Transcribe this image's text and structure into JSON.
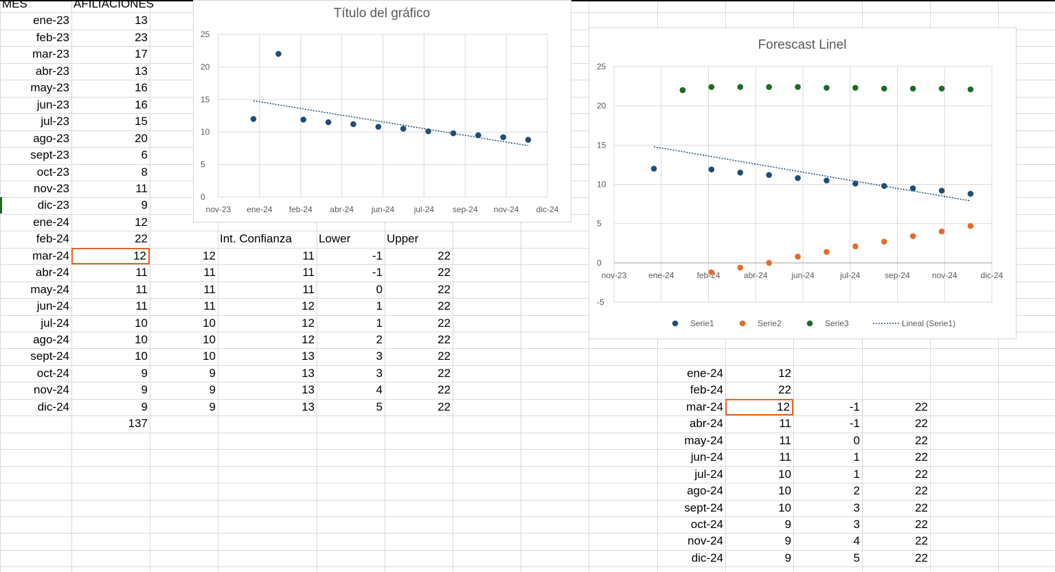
{
  "colors": {
    "grid": "#d9d9d9",
    "series1": "#1f4e79",
    "series2": "#e46c2c",
    "series3": "#1e6b24",
    "trend": "#1f4e79",
    "selection": "#e0651f"
  },
  "table_main": {
    "headers": [
      "MES",
      "AFILIACIONES"
    ],
    "rows": [
      [
        "ene-23",
        "13"
      ],
      [
        "feb-23",
        "23"
      ],
      [
        "mar-23",
        "17"
      ],
      [
        "abr-23",
        "13"
      ],
      [
        "may-23",
        "16"
      ],
      [
        "jun-23",
        "16"
      ],
      [
        "jul-23",
        "15"
      ],
      [
        "ago-23",
        "20"
      ],
      [
        "sept-23",
        "6"
      ],
      [
        "oct-23",
        "8"
      ],
      [
        "nov-23",
        "11"
      ],
      [
        "dic-23",
        "9"
      ],
      [
        "ene-24",
        "12"
      ],
      [
        "feb-24",
        "22"
      ],
      [
        "mar-24",
        "12"
      ],
      [
        "abr-24",
        "11"
      ],
      [
        "may-24",
        "11"
      ],
      [
        "jun-24",
        "11"
      ],
      [
        "jul-24",
        "10"
      ],
      [
        "ago-24",
        "10"
      ],
      [
        "sept-24",
        "10"
      ],
      [
        "oct-24",
        "9"
      ],
      [
        "nov-24",
        "9"
      ],
      [
        "dic-24",
        "9"
      ]
    ],
    "total": "137"
  },
  "table_forecast": {
    "headers": [
      "Int. Confianza",
      "Lower",
      "Upper"
    ],
    "rows": [
      [
        "12",
        "11",
        "-1",
        "22"
      ],
      [
        "11",
        "11",
        "-1",
        "22"
      ],
      [
        "11",
        "11",
        "0",
        "22"
      ],
      [
        "11",
        "12",
        "1",
        "22"
      ],
      [
        "10",
        "12",
        "1",
        "22"
      ],
      [
        "10",
        "12",
        "2",
        "22"
      ],
      [
        "10",
        "13",
        "3",
        "22"
      ],
      [
        "9",
        "13",
        "3",
        "22"
      ],
      [
        "9",
        "13",
        "4",
        "22"
      ],
      [
        "9",
        "13",
        "5",
        "22"
      ]
    ]
  },
  "table_right": {
    "rows": [
      [
        "ene-24",
        "12",
        "",
        ""
      ],
      [
        "feb-24",
        "22",
        "",
        ""
      ],
      [
        "mar-24",
        "12",
        "-1",
        "22"
      ],
      [
        "abr-24",
        "11",
        "-1",
        "22"
      ],
      [
        "may-24",
        "11",
        "0",
        "22"
      ],
      [
        "jun-24",
        "11",
        "1",
        "22"
      ],
      [
        "jul-24",
        "10",
        "1",
        "22"
      ],
      [
        "ago-24",
        "10",
        "2",
        "22"
      ],
      [
        "sept-24",
        "10",
        "3",
        "22"
      ],
      [
        "oct-24",
        "9",
        "3",
        "22"
      ],
      [
        "nov-24",
        "9",
        "4",
        "22"
      ],
      [
        "dic-24",
        "9",
        "5",
        "22"
      ]
    ]
  },
  "chart_data": [
    {
      "type": "scatter",
      "title": "Título del gráfico",
      "x_tick_labels": [
        "nov-23",
        "ene-24",
        "feb-24",
        "abr-24",
        "jun-24",
        "jul-24",
        "sep-24",
        "nov-24",
        "dic-24"
      ],
      "y_ticks": [
        "0",
        "5",
        "10",
        "15",
        "20",
        "25"
      ],
      "ylim": [
        0,
        25
      ],
      "grid": true,
      "series": [
        {
          "x": [
            "ene-24",
            "feb-24",
            "mar-24",
            "abr-24",
            "may-24",
            "jun-24",
            "jul-24",
            "ago-24",
            "sept-24",
            "oct-24",
            "nov-24",
            "dic-24"
          ],
          "values": [
            12,
            22,
            11.9,
            11.5,
            11.2,
            10.8,
            10.5,
            10.1,
            9.8,
            9.5,
            9.2,
            8.8
          ]
        }
      ],
      "trendline": {
        "type": "linear",
        "start": 14.8,
        "end": 7.9
      }
    },
    {
      "type": "scatter",
      "title": "Forescast Linel",
      "x_tick_labels": [
        "nov-23",
        "ene-24",
        "feb-24",
        "abr-24",
        "jun-24",
        "jul-24",
        "sep-24",
        "nov-24",
        "dic-24"
      ],
      "y_ticks": [
        "-5",
        "0",
        "5",
        "10",
        "15",
        "20",
        "25"
      ],
      "ylim": [
        -5,
        25
      ],
      "grid": true,
      "legend_position": "bottom",
      "series": [
        {
          "name": "Serie1",
          "values": [
            12,
            22,
            11.9,
            11.5,
            11.2,
            10.8,
            10.5,
            10.1,
            9.8,
            9.5,
            9.2,
            8.8
          ]
        },
        {
          "name": "Serie2",
          "values": [
            null,
            null,
            -1.2,
            -0.6,
            0,
            0.8,
            1.4,
            2.1,
            2.7,
            3.4,
            4,
            4.7
          ]
        },
        {
          "name": "Serie3",
          "values": [
            null,
            22,
            22.4,
            22.4,
            22.4,
            22.4,
            22.3,
            22.3,
            22.2,
            22.2,
            22.2,
            22.1
          ]
        }
      ],
      "trendline": {
        "name": "Lineal (Serie1)",
        "type": "linear",
        "start": 14.8,
        "end": 7.9
      }
    }
  ]
}
